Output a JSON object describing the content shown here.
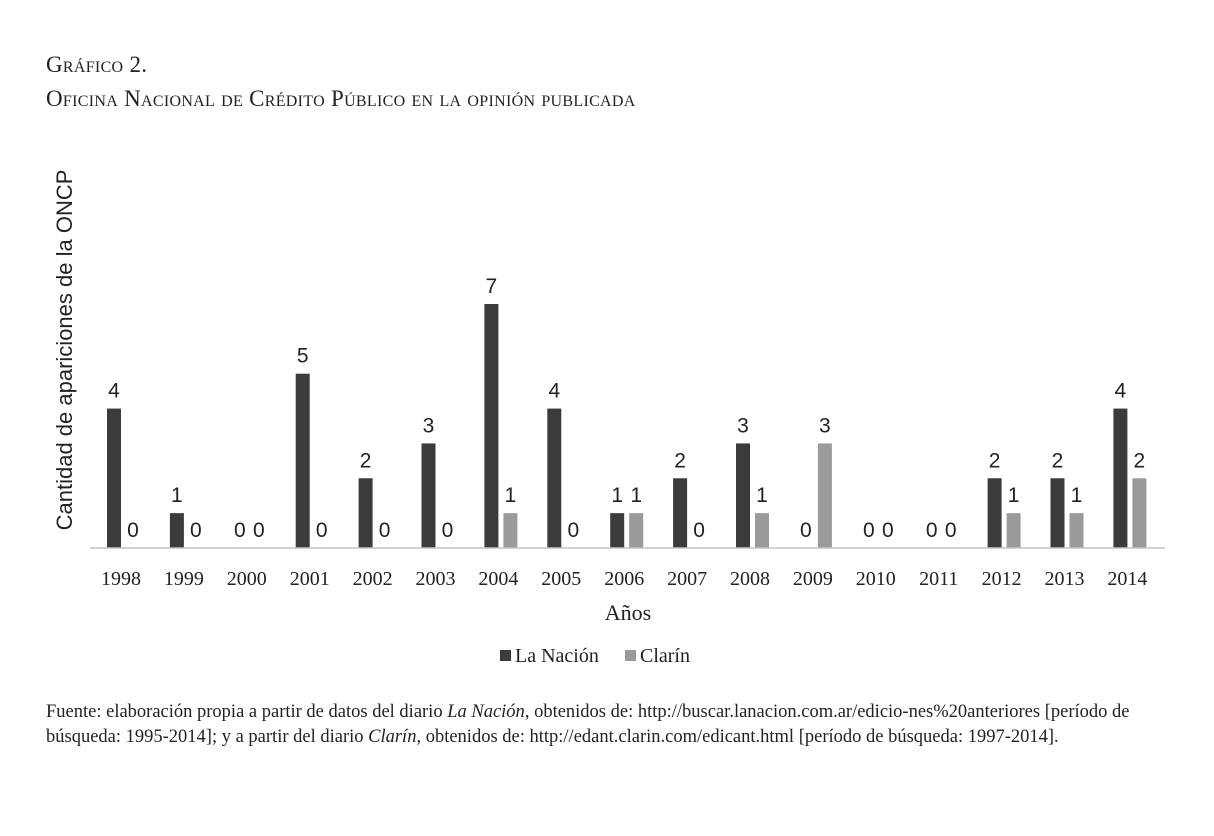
{
  "heading": {
    "label": "Gráfico 2.",
    "title": "Oficina Nacional de Crédito Público en la opinión publicada"
  },
  "chart_data": {
    "type": "bar",
    "xlabel": "Años",
    "ylabel": "Cantidad de apariciones de la ONCP",
    "categories": [
      "1998",
      "1999",
      "2000",
      "2001",
      "2002",
      "2003",
      "2004",
      "2005",
      "2006",
      "2007",
      "2008",
      "2009",
      "2010",
      "2011",
      "2012",
      "2013",
      "2014"
    ],
    "series": [
      {
        "name": "La Nación",
        "color": "#3b3b3b",
        "values": [
          4,
          1,
          0,
          5,
          2,
          3,
          7,
          4,
          1,
          2,
          3,
          0,
          0,
          0,
          2,
          2,
          4
        ]
      },
      {
        "name": "Clarín",
        "color": "#9a9a9a",
        "values": [
          0,
          0,
          0,
          0,
          0,
          0,
          1,
          0,
          1,
          0,
          1,
          3,
          0,
          0,
          1,
          1,
          2
        ]
      }
    ],
    "ylim": [
      0,
      7
    ],
    "grid": false,
    "data_labels": true,
    "legend_position": "bottom"
  },
  "source": {
    "p1": "Fuente: elaboración propia a partir de datos del diario ",
    "i1": "La Nación",
    "p2": ", obtenidos de: http://buscar.lanacion.com.ar/edicio-nes%20anteriores [período de búsqueda: 1995-2014]; y a partir del diario ",
    "i2": "Clarín",
    "p3": ", obtenidos de: http://edant.clarin.com/edicant.html [período de búsqueda: 1997-2014]."
  }
}
